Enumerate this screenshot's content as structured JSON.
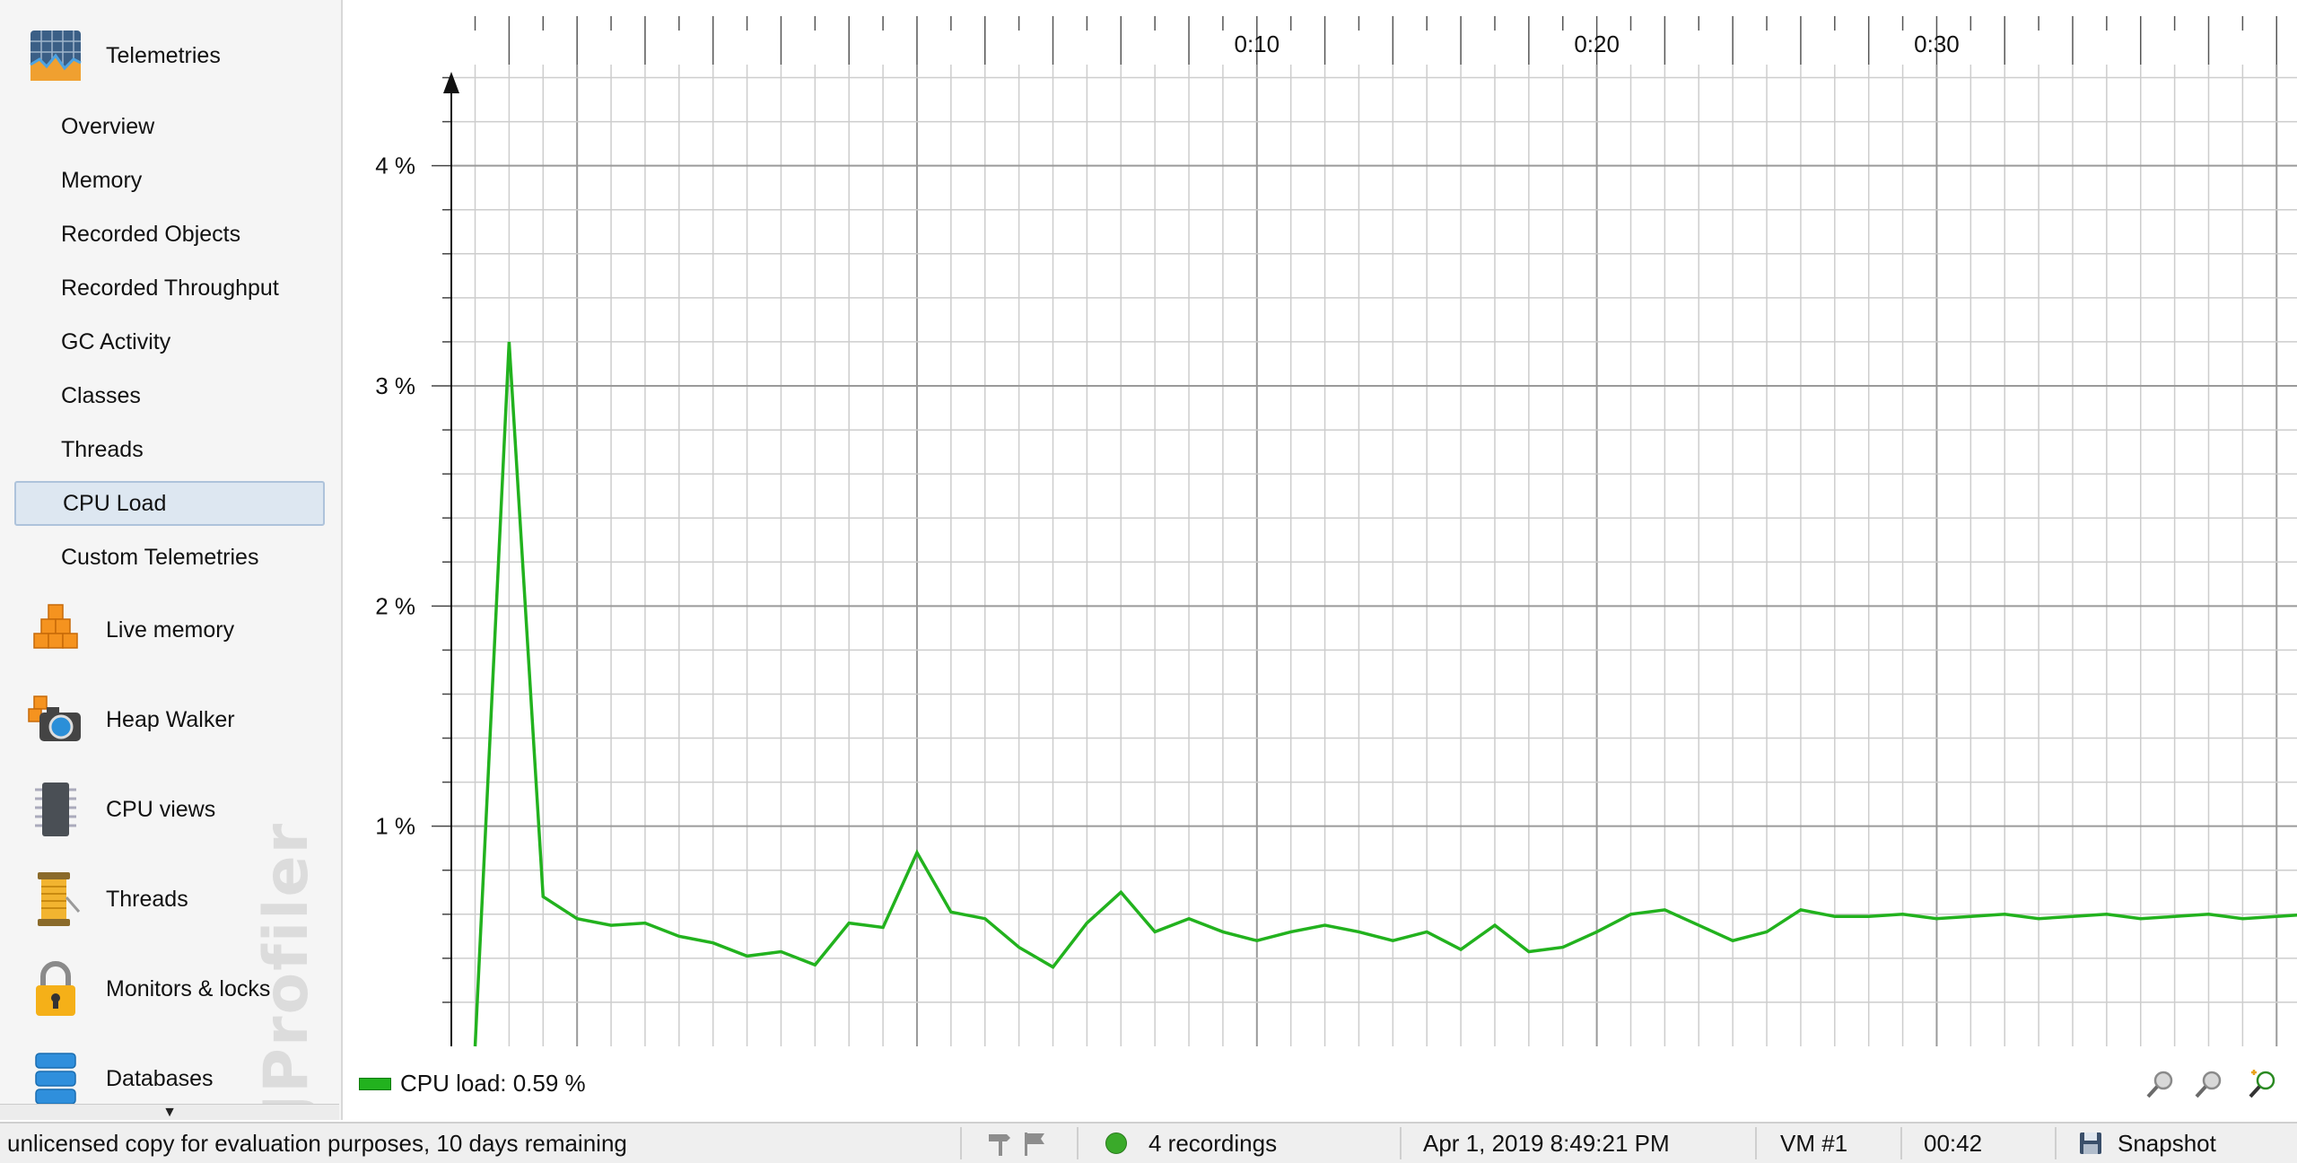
{
  "sidebar": {
    "categories": [
      {
        "label": "Telemetries",
        "icon": "telemetries-icon"
      },
      {
        "label": "Live memory",
        "icon": "live-memory-icon"
      },
      {
        "label": "Heap Walker",
        "icon": "heap-walker-icon"
      },
      {
        "label": "CPU views",
        "icon": "cpu-views-icon"
      },
      {
        "label": "Threads",
        "icon": "threads-icon"
      },
      {
        "label": "Monitors & locks",
        "icon": "monitors-locks-icon"
      },
      {
        "label": "Databases",
        "icon": "databases-icon"
      }
    ],
    "telemetry_items": [
      {
        "label": "Overview"
      },
      {
        "label": "Memory"
      },
      {
        "label": "Recorded Objects"
      },
      {
        "label": "Recorded Throughput"
      },
      {
        "label": "GC Activity"
      },
      {
        "label": "Classes"
      },
      {
        "label": "Threads"
      },
      {
        "label": "CPU Load",
        "selected": true
      },
      {
        "label": "Custom Telemetries"
      }
    ],
    "watermark": "JProfiler"
  },
  "chart_data": {
    "type": "line",
    "x_tick_labels": [
      "0:10",
      "0:20",
      "0:30"
    ],
    "x_unit": "seconds",
    "xlim": [
      -13.7,
      40.6
    ],
    "y_tick_labels": [
      "1 %",
      "2 %",
      "3 %",
      "4 %"
    ],
    "ylim": [
      0,
      4.5
    ],
    "grid": true,
    "series": [
      {
        "name": "CPU load",
        "color": "#22b21e",
        "x": [
          -13,
          -12,
          -11,
          -10,
          -9,
          -8,
          -7,
          -6,
          -5,
          -4,
          -3,
          -2,
          -1,
          0,
          1,
          2,
          3,
          4,
          5,
          6,
          7,
          8,
          9,
          10,
          11,
          12,
          13,
          14,
          15,
          16,
          17,
          18,
          19,
          20,
          21,
          22,
          23,
          24,
          25,
          26,
          27,
          28,
          29,
          30,
          31,
          32,
          33,
          34,
          35,
          36,
          37,
          38,
          39,
          40,
          41
        ],
        "values": [
          0.0,
          3.2,
          0.68,
          0.58,
          0.55,
          0.56,
          0.5,
          0.47,
          0.41,
          0.43,
          0.37,
          0.56,
          0.54,
          0.88,
          0.61,
          0.58,
          0.45,
          0.36,
          0.56,
          0.7,
          0.52,
          0.58,
          0.52,
          0.48,
          0.52,
          0.55,
          0.52,
          0.48,
          0.52,
          0.44,
          0.55,
          0.43,
          0.45,
          0.52,
          0.6,
          0.62,
          0.55,
          0.48,
          0.52,
          0.62,
          0.59,
          0.59,
          0.6,
          0.58,
          0.59,
          0.6,
          0.58,
          0.59,
          0.6,
          0.58,
          0.59,
          0.6,
          0.58,
          0.59,
          0.6
        ]
      }
    ]
  },
  "legend": {
    "label": "CPU load: 0.59 %"
  },
  "status": {
    "license": "unlicensed copy for evaluation purposes, 10 days remaining",
    "recordings": "4 recordings",
    "datetime": "Apr 1, 2019 8:49:21 PM",
    "vm": "VM #1",
    "elapsed": "00:42",
    "snapshot": "Snapshot"
  },
  "colors": {
    "selection_bg": "#dde7f1",
    "series": "#22b21e",
    "recording_dot": "#3aaa2a"
  }
}
